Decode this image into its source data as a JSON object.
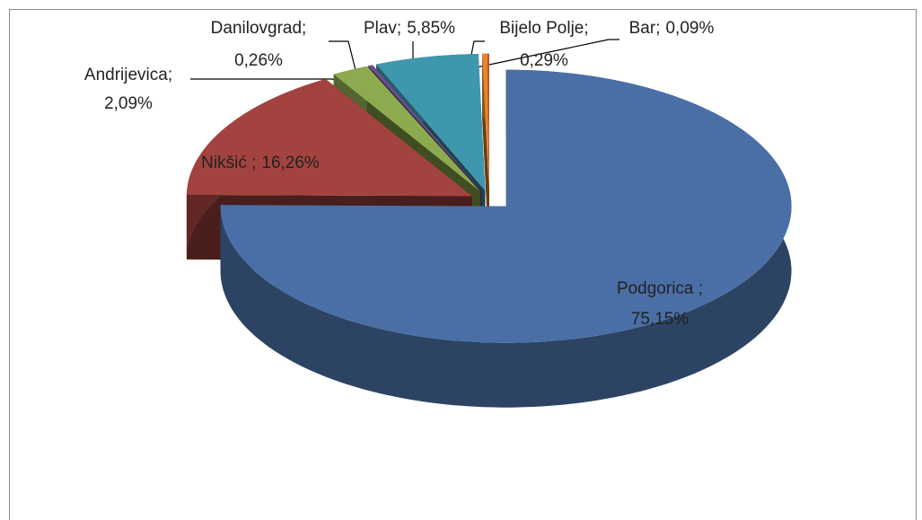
{
  "chart_data": {
    "type": "pie3d",
    "categories": [
      "Podgorica ;",
      "Nikšić  ;",
      "Andrijevica;",
      "Danilovgrad;",
      "Plav;",
      "Bijelo Polje;",
      "Bar;"
    ],
    "values": [
      75.15,
      16.26,
      2.09,
      0.26,
      5.85,
      0.29,
      0.09
    ],
    "value_labels": [
      "75,15%",
      "16,26%",
      "2,09%",
      "0,26%",
      "5,85%",
      "0,29%",
      "0,09%"
    ],
    "colors": [
      "#4a6fa6",
      "#a3433f",
      "#8caa4e",
      "#6b4f8c",
      "#3f97ae",
      "#e8852f",
      "#c4562a"
    ]
  }
}
